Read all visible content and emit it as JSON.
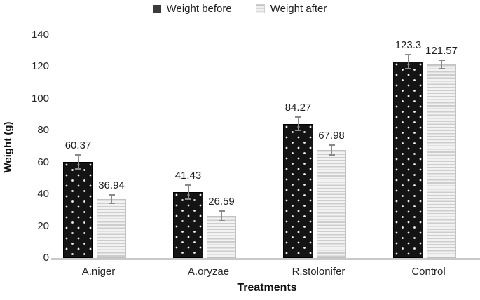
{
  "legend": {
    "items": [
      {
        "label": "Weight before",
        "swatch": "black-dotted-square"
      },
      {
        "label": "Weight after",
        "swatch": "light-striped-square"
      }
    ]
  },
  "chart_data": {
    "type": "bar",
    "title": "",
    "categories": [
      "A.niger",
      "A.oryzae",
      "R.stolonifer",
      "Control"
    ],
    "series": [
      {
        "name": "Weight before",
        "values": [
          60.37,
          41.43,
          84.27,
          123.3
        ],
        "labels": [
          "60.37",
          "41.43",
          "84.27",
          "123.3"
        ],
        "errors": [
          4.8,
          4.8,
          4.8,
          5.0
        ],
        "pattern": "black-with-white-dots"
      },
      {
        "name": "Weight after",
        "values": [
          36.94,
          26.59,
          67.98,
          121.57
        ],
        "labels": [
          "36.94",
          "26.59",
          "67.98",
          "121.57"
        ],
        "errors": [
          3.1,
          3.5,
          3.5,
          3.1
        ],
        "pattern": "light-gray-horizontal-stripes"
      }
    ],
    "xlabel": "Treatments",
    "ylabel": "Weight (g)",
    "ylim": [
      0,
      140
    ],
    "yticks": [
      0,
      20,
      40,
      60,
      80,
      100,
      120,
      140
    ],
    "grid": false,
    "error_bars": true,
    "legend_position": "top-center",
    "data_labels": "above-error-bars"
  },
  "colors": {
    "bar_before": "#141414",
    "bar_before_dots": "#ffffff",
    "bar_after_bg": "#f4f4f4",
    "bar_after_stripe": "#cdcdcd",
    "error_bar": "#8a8a8a",
    "baseline": "#c9c9c9",
    "text": "#1f1f1f"
  }
}
